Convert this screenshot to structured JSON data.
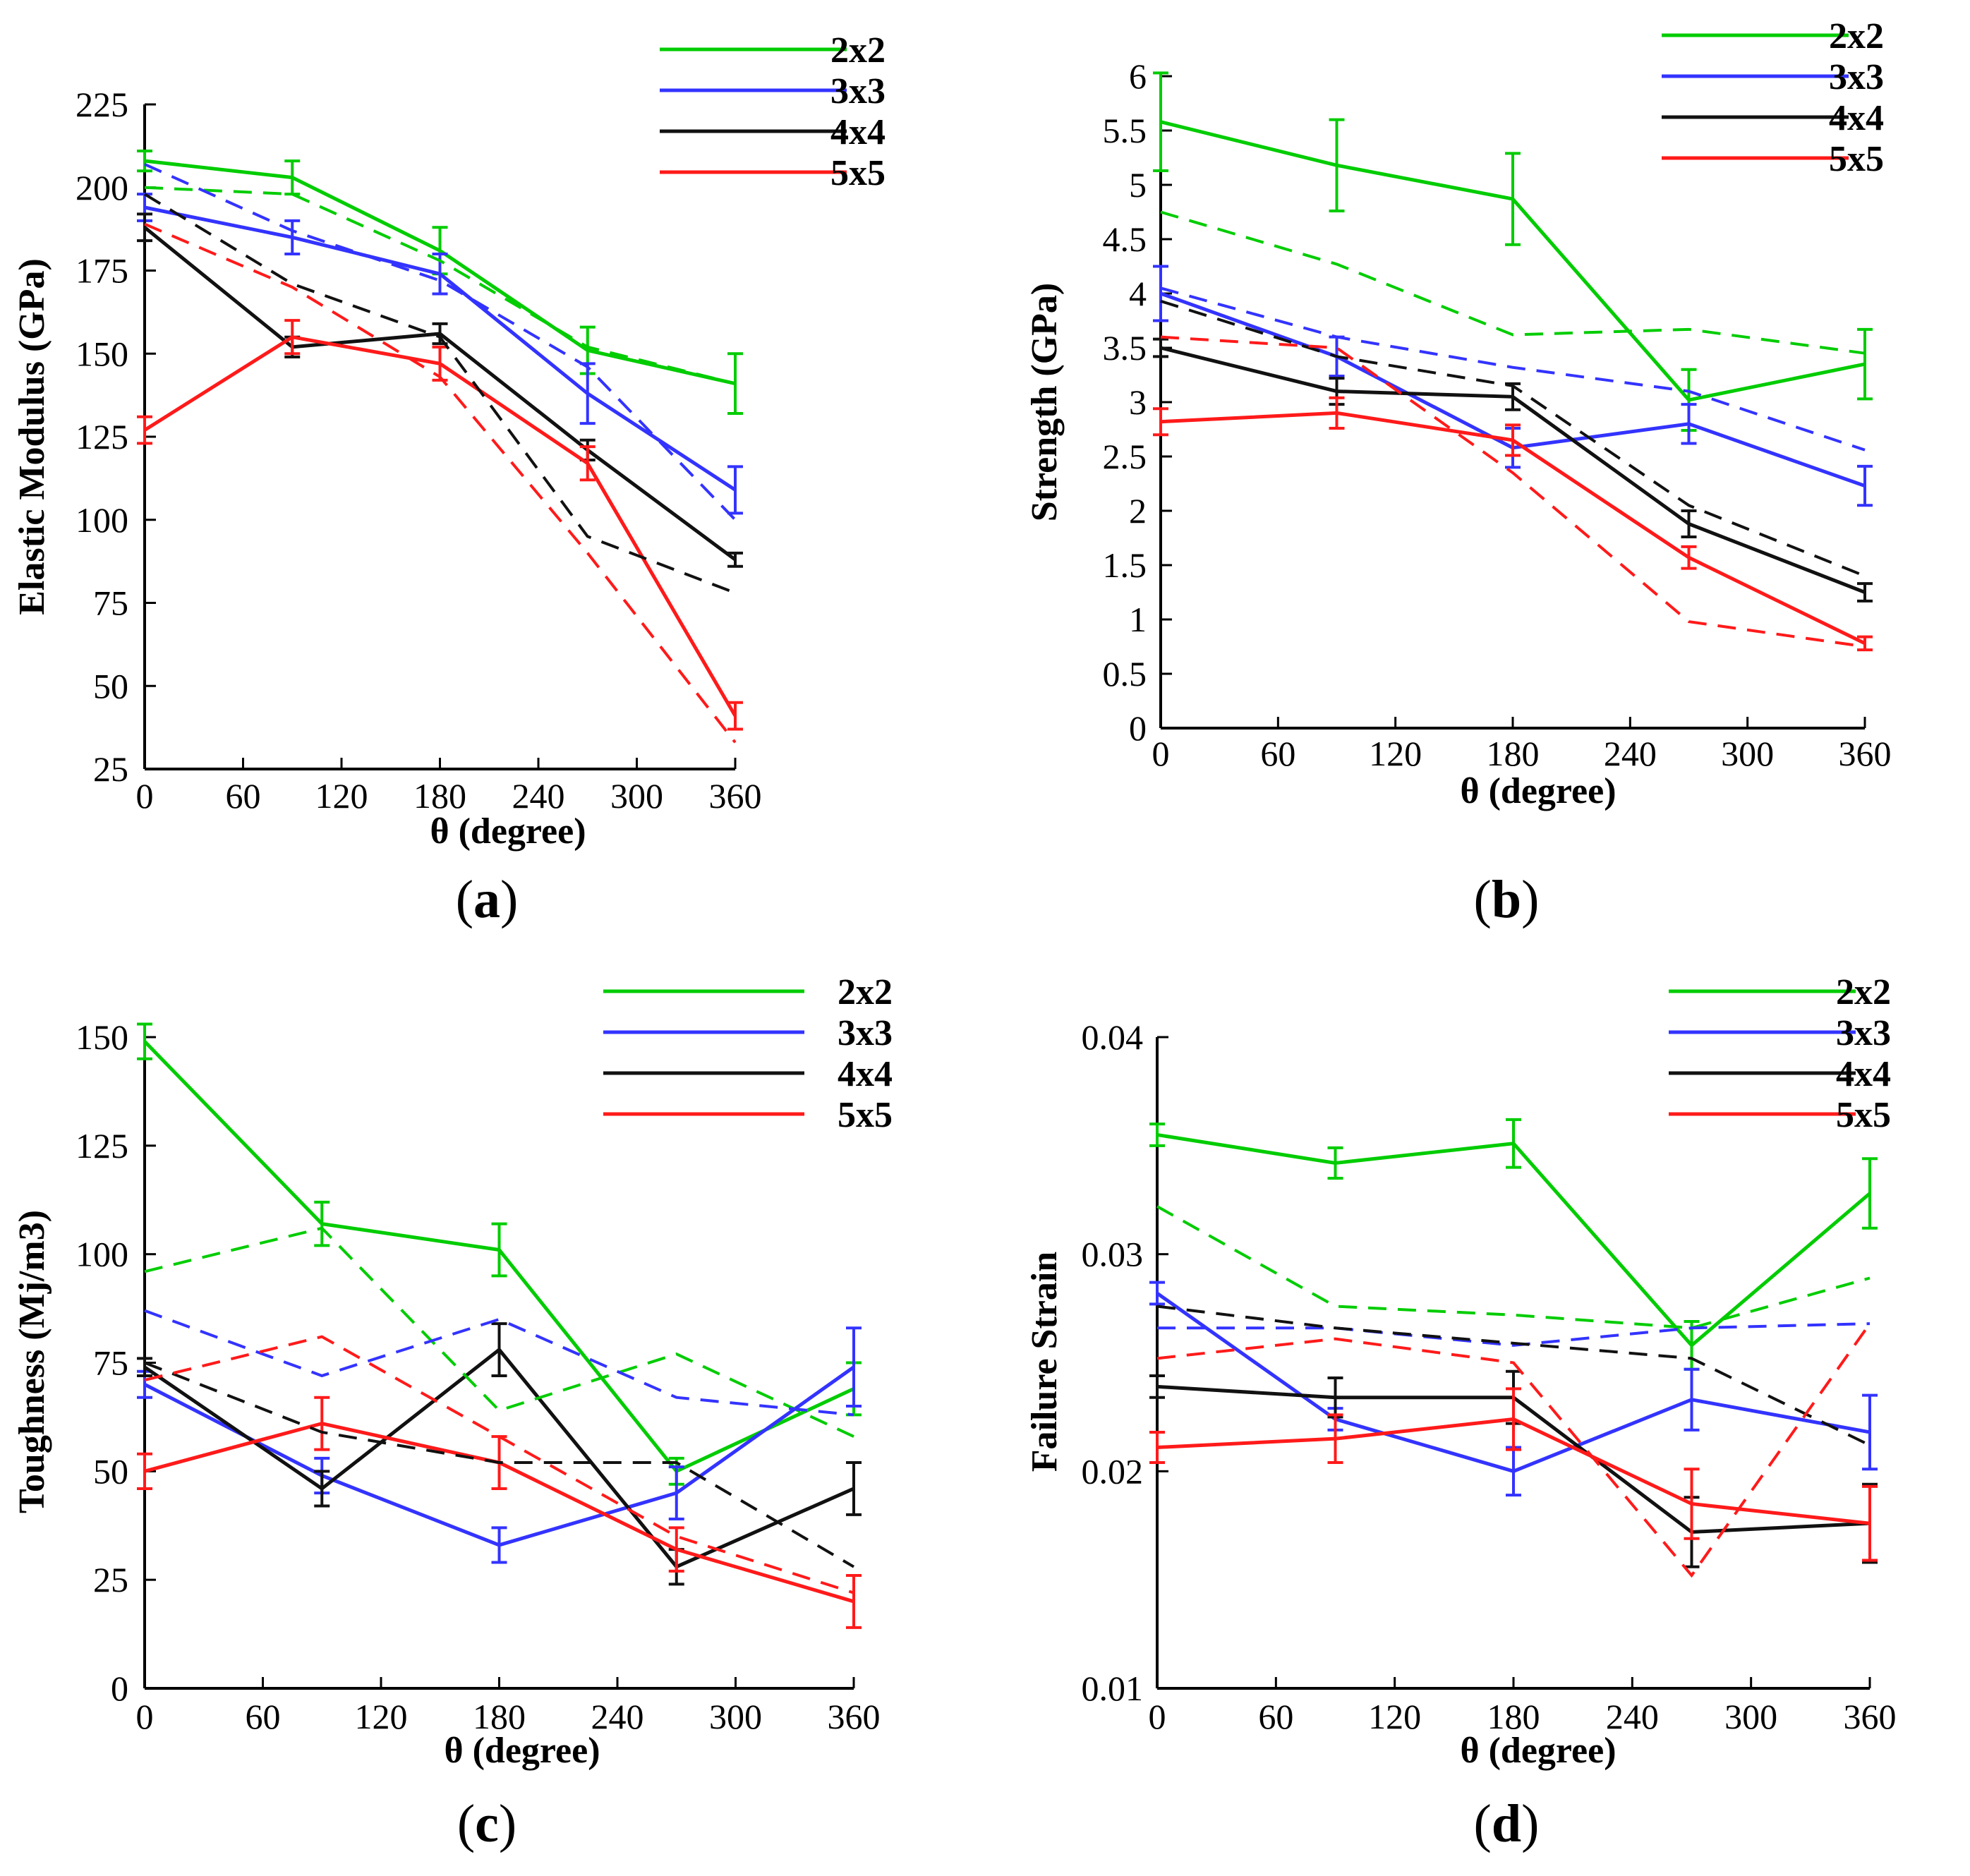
{
  "figure": {
    "panels": [
      "(a)",
      "(b)",
      "(c)",
      "(d)"
    ]
  },
  "colors": {
    "2x2": "#00cc00",
    "3x3": "#3333ff",
    "4x4": "#111111",
    "5x5": "#ff1a1a"
  },
  "chart_data": [
    {
      "type": "line",
      "panel": "a",
      "panel_letter": "a",
      "title": "",
      "xlabel": "θ  (degree)",
      "ylabel": "Elastic Modulus (GPa)",
      "xlim": [
        0,
        360
      ],
      "ylim": [
        25,
        225
      ],
      "xticks": [
        0,
        60,
        120,
        180,
        240,
        300,
        360
      ],
      "xtick_labels": [
        "0",
        "60",
        "120",
        "180",
        "240",
        "300",
        "360"
      ],
      "yticks": [
        25,
        50,
        75,
        100,
        125,
        150,
        175,
        200,
        225
      ],
      "ytick_labels": [
        "25",
        "50",
        "75",
        "100",
        "125",
        "150",
        "175",
        "200",
        "225"
      ],
      "legend": [
        "2x2",
        "3x3",
        "4x4",
        "5x5"
      ],
      "legend_position": "top-right",
      "x": [
        0,
        90,
        180,
        270,
        360
      ],
      "series": [
        {
          "name": "2x2",
          "style": "solid",
          "values": [
            208,
            203,
            181,
            151,
            141
          ],
          "errors": [
            3,
            5,
            7,
            7,
            9
          ]
        },
        {
          "name": "3x3",
          "style": "solid",
          "values": [
            194,
            185,
            174,
            138,
            109
          ],
          "errors": [
            4,
            5,
            6,
            9,
            7
          ]
        },
        {
          "name": "4x4",
          "style": "solid",
          "values": [
            188,
            152,
            156,
            121,
            88
          ],
          "errors": [
            4,
            3,
            3,
            3,
            2
          ]
        },
        {
          "name": "5x5",
          "style": "solid",
          "values": [
            127,
            155,
            147,
            117,
            41
          ],
          "errors": [
            4,
            5,
            5,
            5,
            4
          ]
        },
        {
          "name": "2x2",
          "style": "dashed",
          "values": [
            200,
            198,
            178,
            152,
            141
          ],
          "errors": [
            0,
            0,
            0,
            0,
            0
          ]
        },
        {
          "name": "3x3",
          "style": "dashed",
          "values": [
            207,
            187,
            172,
            146,
            100
          ],
          "errors": [
            0,
            0,
            0,
            0,
            0
          ]
        },
        {
          "name": "4x4",
          "style": "dashed",
          "values": [
            198,
            171,
            155,
            95,
            78
          ],
          "errors": [
            0,
            0,
            0,
            0,
            0
          ]
        },
        {
          "name": "5x5",
          "style": "dashed",
          "values": [
            189,
            170,
            143,
            90,
            33
          ],
          "errors": [
            0,
            0,
            0,
            0,
            0
          ]
        }
      ]
    },
    {
      "type": "line",
      "panel": "b",
      "panel_letter": "b",
      "title": "",
      "xlabel": "θ  (degree)",
      "ylabel": "Strength (GPa)",
      "xlim": [
        0,
        360
      ],
      "ylim": [
        0,
        6
      ],
      "xticks": [
        0,
        60,
        120,
        180,
        240,
        300,
        360
      ],
      "xtick_labels": [
        "0",
        "60",
        "120",
        "180",
        "240",
        "300",
        "360"
      ],
      "yticks": [
        0,
        0.5,
        1,
        1.5,
        2,
        2.5,
        3,
        3.5,
        4,
        4.5,
        5,
        5.5,
        6
      ],
      "ytick_labels": [
        "0",
        "0.5",
        "1",
        "1.5",
        "2",
        "2.5",
        "3",
        "3.5",
        "4",
        "4.5",
        "5",
        "5.5",
        "6"
      ],
      "legend": [
        "2x2",
        "3x3",
        "4x4",
        "5x5"
      ],
      "legend_position": "top-right",
      "x": [
        0,
        90,
        180,
        270,
        360
      ],
      "series": [
        {
          "name": "2x2",
          "style": "solid",
          "values": [
            5.58,
            5.18,
            4.87,
            3.02,
            3.35
          ],
          "errors": [
            0.45,
            0.42,
            0.42,
            0.28,
            0.32
          ]
        },
        {
          "name": "3x3",
          "style": "solid",
          "values": [
            4.0,
            3.42,
            2.58,
            2.8,
            2.23
          ],
          "errors": [
            0.25,
            0.18,
            0.18,
            0.18,
            0.18
          ]
        },
        {
          "name": "4x4",
          "style": "solid",
          "values": [
            3.5,
            3.1,
            3.05,
            1.88,
            1.25
          ],
          "errors": [
            0.08,
            0.12,
            0.12,
            0.12,
            0.08
          ]
        },
        {
          "name": "5x5",
          "style": "solid",
          "values": [
            2.82,
            2.9,
            2.65,
            1.57,
            0.78
          ],
          "errors": [
            0.12,
            0.14,
            0.14,
            0.1,
            0.06
          ]
        },
        {
          "name": "2x2",
          "style": "dashed",
          "values": [
            4.75,
            4.27,
            3.62,
            3.67,
            3.45
          ],
          "errors": [
            0,
            0,
            0,
            0,
            0
          ]
        },
        {
          "name": "3x3",
          "style": "dashed",
          "values": [
            4.05,
            3.6,
            3.32,
            3.1,
            2.56
          ],
          "errors": [
            0,
            0,
            0,
            0,
            0
          ]
        },
        {
          "name": "4x4",
          "style": "dashed",
          "values": [
            3.93,
            3.42,
            3.15,
            2.05,
            1.4
          ],
          "errors": [
            0,
            0,
            0,
            0,
            0
          ]
        },
        {
          "name": "5x5",
          "style": "dashed",
          "values": [
            3.6,
            3.5,
            2.35,
            0.98,
            0.75
          ],
          "errors": [
            0,
            0,
            0,
            0,
            0
          ]
        }
      ]
    },
    {
      "type": "line",
      "panel": "c",
      "panel_letter": "c",
      "title": "",
      "xlabel": "θ  (degree)",
      "ylabel": "Toughness (Mj/m3)",
      "xlim": [
        0,
        360
      ],
      "ylim": [
        0,
        150
      ],
      "xticks": [
        0,
        60,
        120,
        180,
        240,
        300,
        360
      ],
      "xtick_labels": [
        "0",
        "60",
        "120",
        "180",
        "240",
        "300",
        "360"
      ],
      "yticks": [
        0,
        25,
        50,
        75,
        100,
        125,
        150
      ],
      "ytick_labels": [
        "0",
        "25",
        "50",
        "75",
        "100",
        "125",
        "150"
      ],
      "legend": [
        "2x2",
        "3x3",
        "4x4",
        "5x5"
      ],
      "legend_position": "top-right",
      "x": [
        0,
        90,
        180,
        270,
        360
      ],
      "series": [
        {
          "name": "2x2",
          "style": "solid",
          "values": [
            149,
            107,
            101,
            50,
            69
          ],
          "errors": [
            4,
            5,
            6,
            3,
            6
          ]
        },
        {
          "name": "3x3",
          "style": "solid",
          "values": [
            70,
            49,
            33,
            45,
            74
          ],
          "errors": [
            3,
            4,
            4,
            6,
            9
          ]
        },
        {
          "name": "4x4",
          "style": "solid",
          "values": [
            74,
            46,
            78,
            28,
            46
          ],
          "errors": [
            2,
            4,
            6,
            4,
            6
          ]
        },
        {
          "name": "5x5",
          "style": "solid",
          "values": [
            50,
            61,
            52,
            32,
            20
          ],
          "errors": [
            4,
            6,
            6,
            5,
            6
          ]
        },
        {
          "name": "2x2",
          "style": "dashed",
          "values": [
            96,
            106,
            64,
            77,
            58
          ],
          "errors": [
            0,
            0,
            0,
            0,
            0
          ]
        },
        {
          "name": "3x3",
          "style": "dashed",
          "values": [
            87,
            72,
            85,
            67,
            63
          ],
          "errors": [
            0,
            0,
            0,
            0,
            0
          ]
        },
        {
          "name": "4x4",
          "style": "dashed",
          "values": [
            75,
            59,
            52,
            52,
            28
          ],
          "errors": [
            0,
            0,
            0,
            0,
            0
          ]
        },
        {
          "name": "5x5",
          "style": "dashed",
          "values": [
            71,
            81,
            58,
            35,
            22
          ],
          "errors": [
            0,
            0,
            0,
            0,
            0
          ]
        }
      ]
    },
    {
      "type": "line",
      "panel": "d",
      "panel_letter": "d",
      "title": "",
      "xlabel": "θ  (degree)",
      "ylabel": "Failure Strain",
      "xlim": [
        0,
        360
      ],
      "ylim": [
        0.01,
        0.04
      ],
      "xticks": [
        0,
        60,
        120,
        180,
        240,
        300,
        360
      ],
      "xtick_labels": [
        "0",
        "60",
        "120",
        "180",
        "240",
        "300",
        "360"
      ],
      "yticks": [
        0.01,
        0.02,
        0.03,
        0.04
      ],
      "ytick_labels": [
        "0.01",
        "0.02",
        "0.03",
        "0.04"
      ],
      "legend": [
        "2x2",
        "3x3",
        "4x4",
        "5x5"
      ],
      "legend_position": "top-right",
      "x": [
        0,
        90,
        180,
        270,
        360
      ],
      "series": [
        {
          "name": "2x2",
          "style": "solid",
          "values": [
            0.0355,
            0.0342,
            0.0351,
            0.0258,
            0.0328
          ],
          "errors": [
            0.0005,
            0.0007,
            0.0011,
            0.0011,
            0.0016
          ]
        },
        {
          "name": "3x3",
          "style": "solid",
          "values": [
            0.0282,
            0.0224,
            0.02,
            0.0233,
            0.0218
          ],
          "errors": [
            0.0005,
            0.0005,
            0.0011,
            0.0014,
            0.0017
          ]
        },
        {
          "name": "4x4",
          "style": "solid",
          "values": [
            0.0239,
            0.0234,
            0.0234,
            0.0172,
            0.0176
          ],
          "errors": [
            0.0005,
            0.0009,
            0.0012,
            0.0016,
            0.0018
          ]
        },
        {
          "name": "5x5",
          "style": "solid",
          "values": [
            0.0211,
            0.0215,
            0.0224,
            0.0185,
            0.0176
          ],
          "errors": [
            0.0007,
            0.0011,
            0.0014,
            0.0016,
            0.0017
          ]
        },
        {
          "name": "2x2",
          "style": "dashed",
          "values": [
            0.0322,
            0.0276,
            0.0272,
            0.0266,
            0.0289
          ],
          "errors": [
            0,
            0,
            0,
            0,
            0
          ]
        },
        {
          "name": "3x3",
          "style": "dashed",
          "values": [
            0.0266,
            0.0266,
            0.0258,
            0.0266,
            0.0268
          ],
          "errors": [
            0,
            0,
            0,
            0,
            0
          ]
        },
        {
          "name": "4x4",
          "style": "dashed",
          "values": [
            0.0276,
            0.0266,
            0.0259,
            0.0252,
            0.0212
          ],
          "errors": [
            0,
            0,
            0,
            0,
            0
          ]
        },
        {
          "name": "5x5",
          "style": "dashed",
          "values": [
            0.0252,
            0.0261,
            0.025,
            0.0152,
            0.0268
          ],
          "errors": [
            0,
            0,
            0,
            0,
            0
          ]
        }
      ]
    }
  ]
}
